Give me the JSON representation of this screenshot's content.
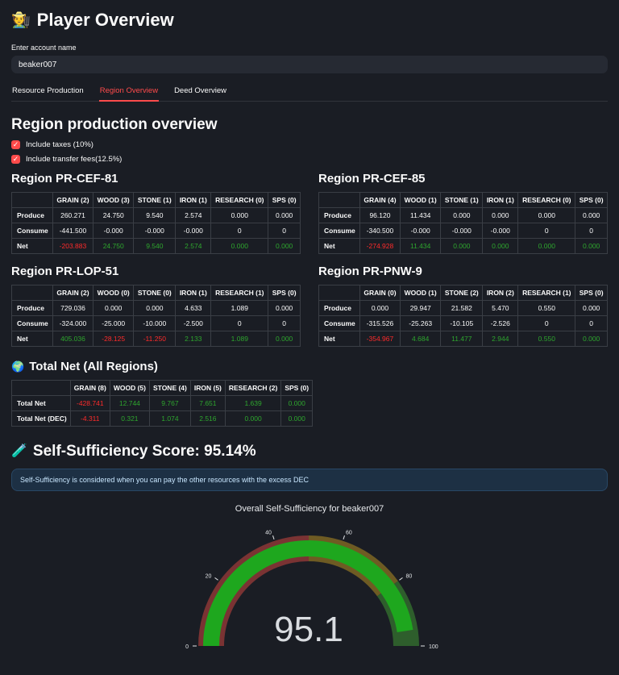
{
  "header": {
    "icon": "🧑‍🌾",
    "title": "Player Overview"
  },
  "account_input": {
    "label": "Enter account name",
    "value": "beaker007"
  },
  "tabs": [
    {
      "label": "Resource Production",
      "active": false
    },
    {
      "label": "Region Overview",
      "active": true
    },
    {
      "label": "Deed Overview",
      "active": false
    }
  ],
  "section_title": "Region production overview",
  "checkboxes": [
    {
      "label": "Include taxes (10%)",
      "checked": true
    },
    {
      "label": "Include transfer fees(12.5%)",
      "checked": true
    }
  ],
  "regions": [
    {
      "name": "Region PR-CEF-81",
      "columns": [
        "GRAIN (2)",
        "WOOD (3)",
        "STONE (1)",
        "IRON (1)",
        "RESEARCH (0)",
        "SPS (0)"
      ],
      "rows": [
        {
          "label": "Produce",
          "values": [
            "260.271",
            "24.750",
            "9.540",
            "2.574",
            "0.000",
            "0.000"
          ],
          "colorize": false
        },
        {
          "label": "Consume",
          "values": [
            "-441.500",
            "-0.000",
            "-0.000",
            "-0.000",
            "0",
            "0"
          ],
          "colorize": false
        },
        {
          "label": "Net",
          "values": [
            "-203.883",
            "24.750",
            "9.540",
            "2.574",
            "0.000",
            "0.000"
          ],
          "colorize": true
        }
      ]
    },
    {
      "name": "Region PR-CEF-85",
      "columns": [
        "GRAIN (4)",
        "WOOD (1)",
        "STONE (1)",
        "IRON (1)",
        "RESEARCH (0)",
        "SPS (0)"
      ],
      "rows": [
        {
          "label": "Produce",
          "values": [
            "96.120",
            "11.434",
            "0.000",
            "0.000",
            "0.000",
            "0.000"
          ],
          "colorize": false
        },
        {
          "label": "Consume",
          "values": [
            "-340.500",
            "-0.000",
            "-0.000",
            "-0.000",
            "0",
            "0"
          ],
          "colorize": false
        },
        {
          "label": "Net",
          "values": [
            "-274.928",
            "11.434",
            "0.000",
            "0.000",
            "0.000",
            "0.000"
          ],
          "colorize": true
        }
      ]
    },
    {
      "name": "Region PR-LOP-51",
      "columns": [
        "GRAIN (2)",
        "WOOD (0)",
        "STONE (0)",
        "IRON (1)",
        "RESEARCH (1)",
        "SPS (0)"
      ],
      "rows": [
        {
          "label": "Produce",
          "values": [
            "729.036",
            "0.000",
            "0.000",
            "4.633",
            "1.089",
            "0.000"
          ],
          "colorize": false
        },
        {
          "label": "Consume",
          "values": [
            "-324.000",
            "-25.000",
            "-10.000",
            "-2.500",
            "0",
            "0"
          ],
          "colorize": false
        },
        {
          "label": "Net",
          "values": [
            "405.036",
            "-28.125",
            "-11.250",
            "2.133",
            "1.089",
            "0.000"
          ],
          "colorize": true
        }
      ]
    },
    {
      "name": "Region PR-PNW-9",
      "columns": [
        "GRAIN (0)",
        "WOOD (1)",
        "STONE (2)",
        "IRON (2)",
        "RESEARCH (1)",
        "SPS (0)"
      ],
      "rows": [
        {
          "label": "Produce",
          "values": [
            "0.000",
            "29.947",
            "21.582",
            "5.470",
            "0.550",
            "0.000"
          ],
          "colorize": false
        },
        {
          "label": "Consume",
          "values": [
            "-315.526",
            "-25.263",
            "-10.105",
            "-2.526",
            "0",
            "0"
          ],
          "colorize": false
        },
        {
          "label": "Net",
          "values": [
            "-354.967",
            "4.684",
            "11.477",
            "2.944",
            "0.550",
            "0.000"
          ],
          "colorize": true
        }
      ]
    }
  ],
  "total": {
    "icon": "🌍",
    "title": "Total Net (All Regions)",
    "columns": [
      "GRAIN (8)",
      "WOOD (5)",
      "STONE (4)",
      "IRON (5)",
      "RESEARCH (2)",
      "SPS (0)"
    ],
    "rows": [
      {
        "label": "Total Net",
        "values": [
          "-428.741",
          "12.744",
          "9.767",
          "7.651",
          "1.639",
          "0.000"
        ],
        "colorize": true
      },
      {
        "label": "Total Net (DEC)",
        "values": [
          "-4.311",
          "0.321",
          "1.074",
          "2.516",
          "0.000",
          "0.000"
        ],
        "colorize": true
      }
    ]
  },
  "self_sufficiency": {
    "icon": "🧪",
    "heading": "Self-Sufficiency Score: 95.14%",
    "info": "Self-Sufficiency is considered when you can pay the other resources with the excess DEC"
  },
  "chart_data": {
    "type": "gauge",
    "title": "Overall Self-Sufficiency for beaker007",
    "value": 95.1,
    "display_value": "95.1",
    "min": 0,
    "max": 100,
    "ticks": [
      0,
      20,
      40,
      60,
      80,
      100
    ],
    "bar_color": "#1ea71e",
    "steps": [
      {
        "range": [
          0,
          50
        ],
        "color": "#7a3333"
      },
      {
        "range": [
          50,
          80
        ],
        "color": "#6e5b23"
      },
      {
        "range": [
          80,
          100
        ],
        "color": "#2e5e2c"
      }
    ],
    "value_color": "#d9dce0",
    "tick_color": "#e3e5e8",
    "legend": "none",
    "grid": false
  },
  "colors": {
    "accent": "#ff4b4b",
    "positive": "#2ea62e",
    "negative": "#ff2b2b"
  }
}
